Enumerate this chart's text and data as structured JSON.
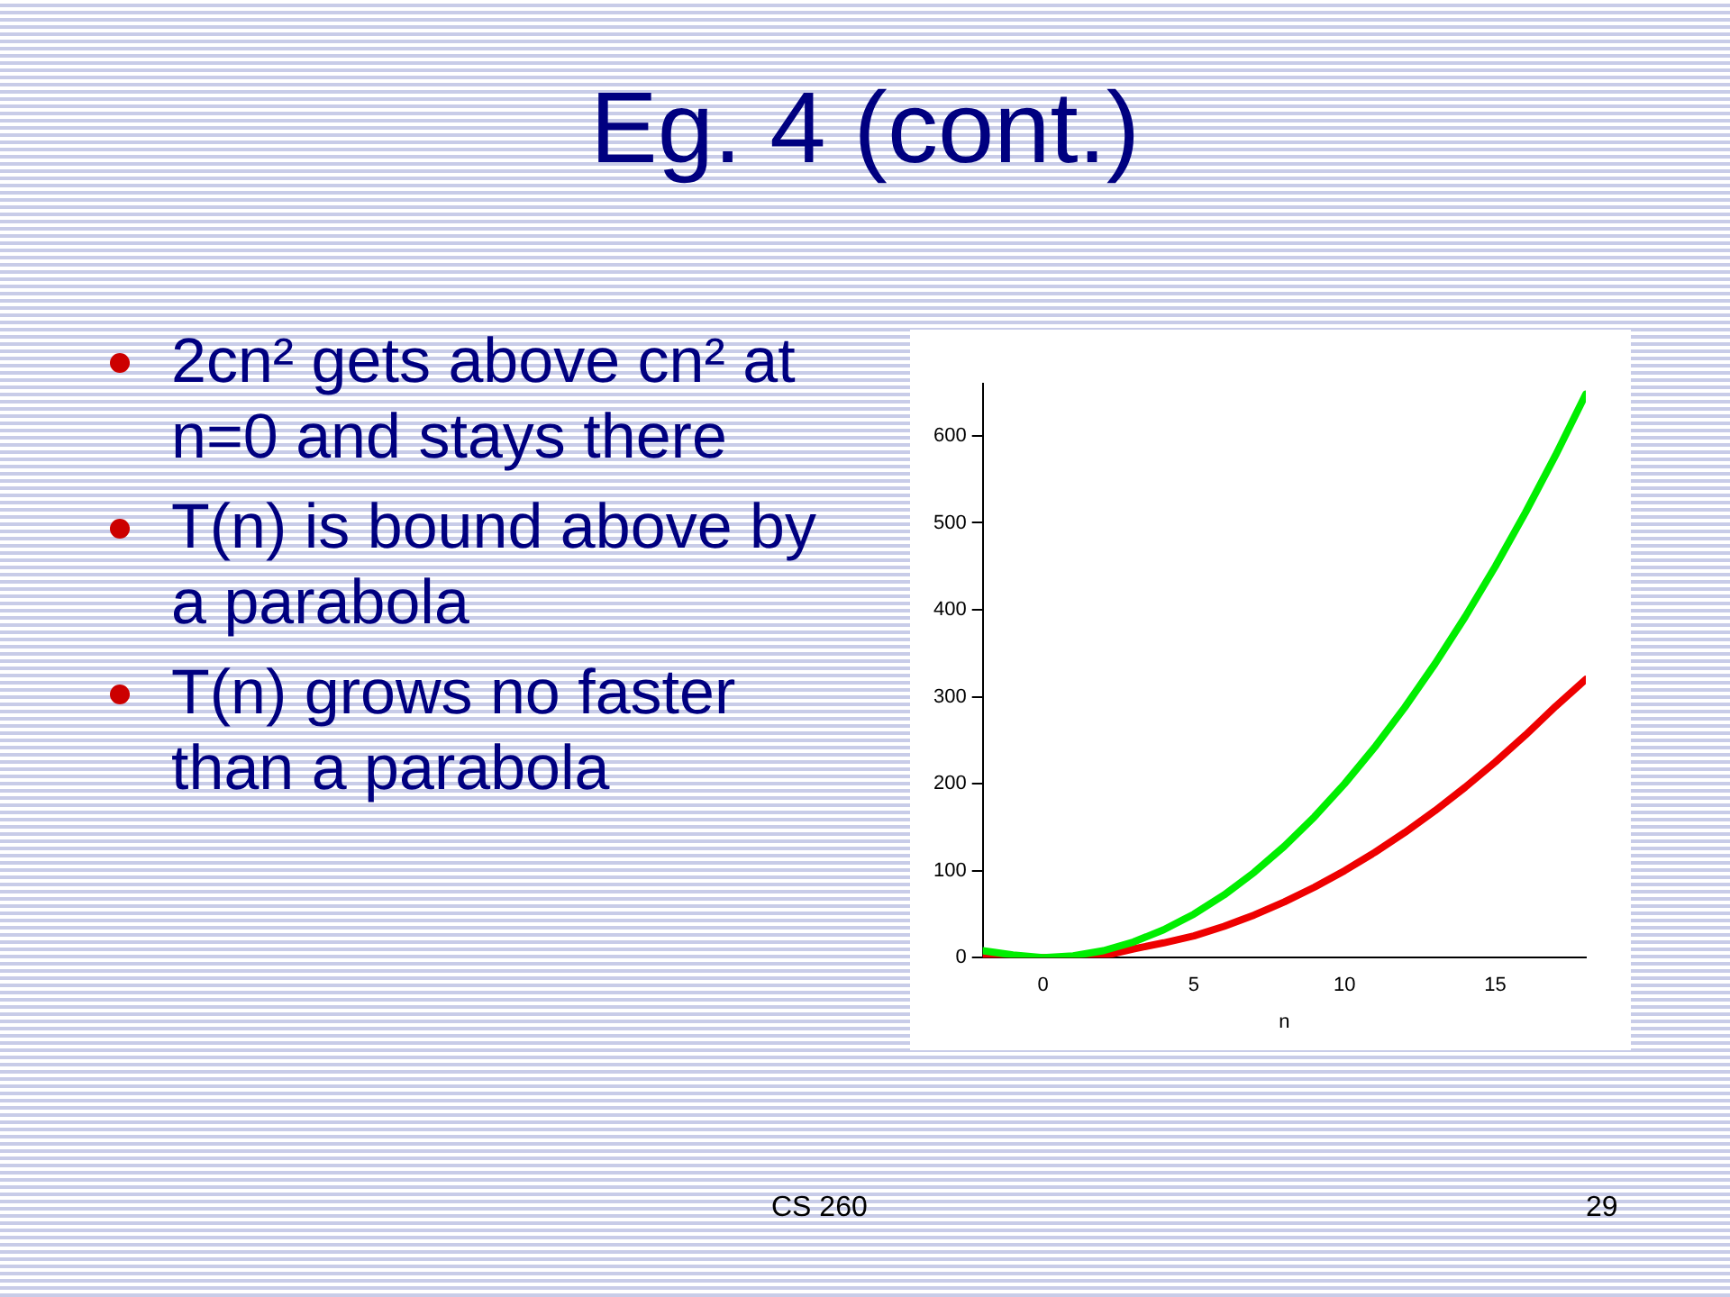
{
  "chart_data": {
    "type": "line",
    "title": "Eg. 4 (cont.)",
    "xlabel": "n",
    "x": [
      -2,
      -1,
      0,
      1,
      2,
      3,
      4,
      5,
      6,
      7,
      8,
      9,
      10,
      11,
      12,
      13,
      14,
      15,
      16,
      17,
      18
    ],
    "series": [
      {
        "color": "#00ee00",
        "values": [
          8,
          3,
          0,
          2,
          8,
          18,
          32,
          50,
          72,
          98,
          128,
          162,
          200,
          242,
          288,
          338,
          392,
          450,
          512,
          578,
          648
        ]
      },
      {
        "color": "#ee0000",
        "values": [
          0,
          0,
          0,
          0,
          2,
          10,
          17,
          25,
          36,
          49,
          64,
          81,
          100,
          121,
          144,
          169,
          196,
          225,
          256,
          289,
          320
        ]
      }
    ],
    "xlim": [
      -2,
      18
    ],
    "xticks": [
      0,
      5,
      10,
      15
    ],
    "ylim": [
      0,
      660
    ],
    "yticks": [
      0,
      100,
      200,
      300,
      400,
      500,
      600
    ],
    "grid": false,
    "legend": false,
    "marker": "none",
    "line_style": "solid",
    "annotations": [
      "2cn² gets above cn² at n=0 and stays there",
      "T(n) is bound above by a parabola",
      "T(n) grows no faster than a parabola",
      "CS 260",
      "29"
    ]
  }
}
